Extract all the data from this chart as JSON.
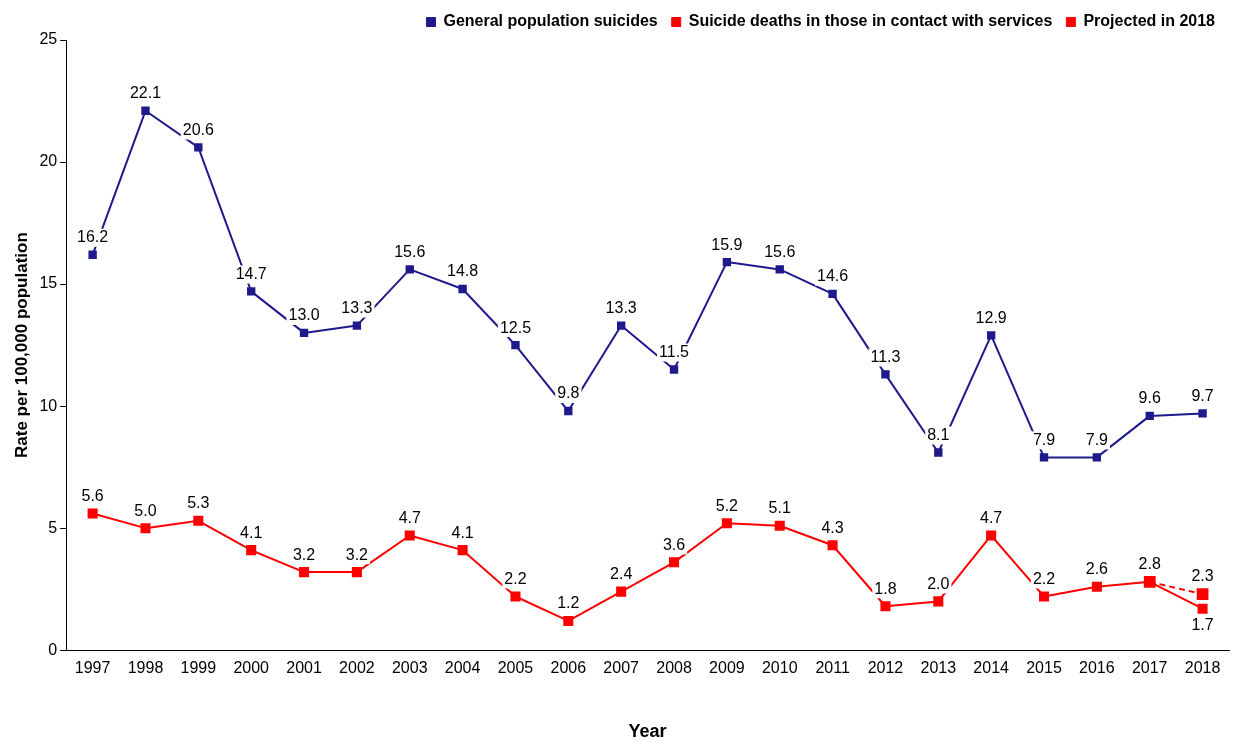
{
  "chart_data": {
    "type": "line",
    "xlabel": "Year",
    "ylabel": "Rate per 100,000 population",
    "categories": [
      "1997",
      "1998",
      "1999",
      "2000",
      "2001",
      "2002",
      "2003",
      "2004",
      "2005",
      "2006",
      "2007",
      "2008",
      "2009",
      "2010",
      "2011",
      "2012",
      "2013",
      "2014",
      "2015",
      "2016",
      "2017",
      "2018"
    ],
    "series": [
      {
        "name": "General population suicides",
        "color": "#1f1a8c",
        "values": [
          16.2,
          22.1,
          20.6,
          14.7,
          13.0,
          13.3,
          15.6,
          14.8,
          12.5,
          9.8,
          13.3,
          11.5,
          15.9,
          15.6,
          14.6,
          11.3,
          8.1,
          12.9,
          7.9,
          7.9,
          9.6,
          9.7
        ],
        "value_labels": [
          "16.2",
          "22.1",
          "20.6",
          "14.7",
          "13.0",
          "13.3",
          "15.6",
          "14.8",
          "12.5",
          "9.8",
          "13.3",
          "11.5",
          "15.9",
          "15.6",
          "14.6",
          "11.3",
          "8.1",
          "12.9",
          "7.9",
          "7.9",
          "9.6",
          "9.7"
        ]
      },
      {
        "name": "Suicide deaths in those in contact with services",
        "color": "#ff0000",
        "values": [
          5.6,
          5.0,
          5.3,
          4.1,
          3.2,
          3.2,
          4.7,
          4.1,
          2.2,
          1.2,
          2.4,
          3.6,
          5.2,
          5.1,
          4.3,
          1.8,
          2.0,
          4.7,
          2.2,
          2.6,
          2.8,
          1.7
        ],
        "value_labels": [
          "5.6",
          "5.0",
          "5.3",
          "4.1",
          "3.2",
          "3.2",
          "4.7",
          "4.1",
          "2.2",
          "1.2",
          "2.4",
          "3.6",
          "5.2",
          "5.1",
          "4.3",
          "1.8",
          "2.0",
          "4.7",
          "2.2",
          "2.6",
          "2.8",
          "1.7"
        ]
      },
      {
        "name": "Projected in 2018",
        "color": "#ff0000",
        "line_style": "dashed",
        "values": [
          null,
          null,
          null,
          null,
          null,
          null,
          null,
          null,
          null,
          null,
          null,
          null,
          null,
          null,
          null,
          null,
          null,
          null,
          null,
          null,
          2.8,
          2.3
        ],
        "value_labels": [
          null,
          null,
          null,
          null,
          null,
          null,
          null,
          null,
          null,
          null,
          null,
          null,
          null,
          null,
          null,
          null,
          null,
          null,
          null,
          null,
          null,
          "2.3"
        ]
      }
    ],
    "ylim": [
      0,
      25
    ],
    "yticks": [
      0,
      5,
      10,
      15,
      20,
      25
    ],
    "grid": false,
    "legend": "top right",
    "marker": "square",
    "line_style": "solid"
  }
}
